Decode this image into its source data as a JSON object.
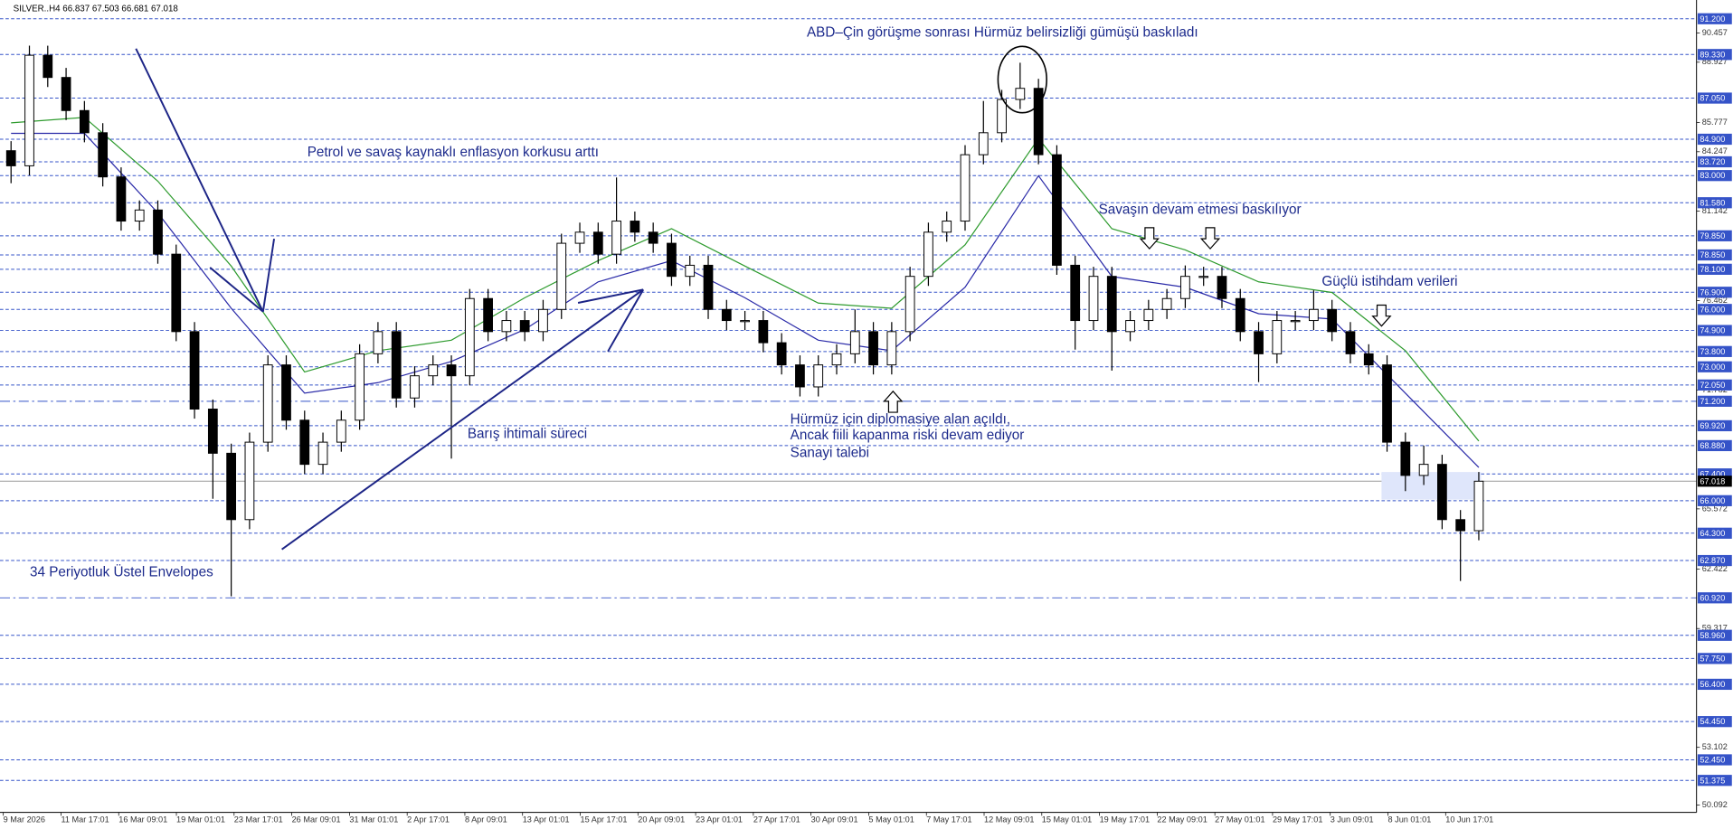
{
  "chart_data": {
    "type": "candlestick",
    "header": "SILVER..H4  66.837 67.503 66.681 67.018",
    "annotations": [
      "ABD–Çin görüşme sonrası Hürmüz belirsizliği gümüşü baskıladı",
      "Petrol ve savaş kaynaklı enflasyon korkusu arttı",
      "Savaşın devam etmesi baskılıyor",
      "Güçlü istihdam verileri",
      "Barış ihtimali süreci",
      "Hürmüz için diplomasiye alan açıldı,",
      "Ancak fiili kapanma riski devam ediyor",
      "Sanayi talebi",
      "34 Periyotluk Üstel Envelopes"
    ],
    "x_labels": [
      "9 Mar 2026",
      "11 Mar 17:01",
      "16 Mar 09:01",
      "19 Mar 01:01",
      "23 Mar 17:01",
      "26 Mar 09:01",
      "31 Mar 01:01",
      "2 Apr 17:01",
      "8 Apr 09:01",
      "13 Apr 01:01",
      "15 Apr 17:01",
      "20 Apr 09:01",
      "23 Apr 01:01",
      "27 Apr 17:01",
      "30 Apr 09:01",
      "5 May 01:01",
      "7 May 17:01",
      "12 May 09:01",
      "15 May 01:01",
      "19 May 17:01",
      "22 May 09:01",
      "27 May 01:01",
      "29 May 17:01",
      "3 Jun 09:01",
      "8 Jun 01:01",
      "10 Jun 17:01"
    ],
    "open": [
      84.3,
      83.51,
      89.29,
      88.13,
      86.4,
      85.24,
      82.93,
      80.62,
      81.2,
      78.89,
      74.84,
      70.79,
      68.48,
      65.01,
      69.06,
      73.1,
      70.21,
      67.9,
      69.06,
      70.21,
      73.68,
      74.84,
      71.37,
      72.53,
      73.1,
      72.53,
      76.57,
      74.84,
      75.42,
      74.84,
      76.0,
      79.46,
      80.04,
      78.89,
      80.62,
      80.04,
      79.46,
      77.73,
      78.31,
      76.0,
      75.42,
      75.42,
      74.26,
      73.1,
      71.95,
      73.1,
      73.68,
      74.84,
      73.1,
      74.84,
      77.73,
      80.04,
      80.62,
      84.09,
      85.24,
      86.98,
      87.56,
      84.09,
      78.31,
      75.42,
      77.73,
      74.84,
      75.42,
      76.0,
      76.57,
      77.73,
      77.73,
      76.57,
      74.84,
      73.68,
      75.42,
      75.42,
      76.0,
      74.84,
      73.68,
      73.1,
      69.06,
      67.32,
      67.9,
      65.01,
      64.43
    ],
    "high": [
      84.8,
      89.79,
      89.79,
      88.63,
      86.9,
      85.74,
      83.43,
      81.7,
      81.7,
      79.39,
      75.34,
      71.29,
      68.98,
      69.56,
      73.6,
      73.6,
      70.71,
      69.56,
      70.71,
      74.18,
      75.34,
      75.34,
      73.03,
      73.6,
      73.6,
      77.07,
      77.07,
      75.92,
      75.92,
      76.5,
      79.96,
      80.54,
      80.54,
      82.9,
      81.12,
      80.54,
      79.96,
      78.81,
      78.81,
      76.5,
      75.92,
      75.92,
      74.76,
      73.6,
      73.6,
      74.18,
      76.0,
      75.34,
      75.34,
      78.23,
      80.54,
      81.12,
      84.59,
      86.9,
      87.48,
      88.9,
      88.06,
      84.59,
      78.81,
      78.23,
      78.23,
      75.92,
      76.5,
      77.07,
      78.3,
      78.23,
      78.23,
      77.07,
      75.34,
      75.92,
      75.92,
      77.0,
      76.5,
      75.34,
      74.18,
      73.6,
      69.56,
      68.88,
      68.4,
      65.51,
      67.5
    ],
    "low": [
      82.6,
      83.01,
      87.63,
      85.9,
      84.74,
      82.43,
      80.12,
      80.12,
      78.39,
      74.34,
      70.29,
      66.1,
      61.0,
      64.51,
      68.56,
      69.71,
      67.4,
      67.4,
      68.56,
      69.71,
      73.18,
      70.87,
      70.87,
      72.03,
      68.2,
      72.03,
      74.34,
      74.34,
      74.34,
      74.34,
      75.5,
      78.96,
      78.39,
      78.39,
      79.54,
      78.96,
      77.23,
      77.23,
      75.5,
      74.92,
      74.92,
      73.76,
      72.6,
      71.45,
      71.45,
      72.6,
      73.18,
      72.6,
      72.6,
      74.34,
      77.23,
      79.54,
      80.12,
      83.59,
      84.74,
      86.48,
      83.59,
      77.81,
      73.9,
      74.92,
      72.8,
      74.34,
      74.92,
      75.5,
      76.07,
      77.23,
      76.07,
      74.34,
      72.2,
      73.18,
      74.92,
      74.92,
      74.34,
      73.18,
      72.6,
      68.56,
      66.5,
      66.82,
      64.51,
      61.8,
      63.93
    ],
    "close": [
      83.51,
      89.29,
      88.13,
      86.4,
      85.24,
      82.93,
      80.62,
      81.2,
      78.89,
      74.84,
      70.79,
      68.48,
      65.01,
      69.06,
      73.1,
      70.21,
      67.9,
      69.06,
      70.21,
      73.68,
      74.84,
      71.37,
      72.53,
      73.1,
      72.53,
      76.57,
      74.84,
      75.42,
      74.84,
      76.0,
      79.46,
      80.04,
      78.89,
      80.62,
      80.04,
      79.46,
      77.73,
      78.31,
      76.0,
      75.42,
      75.42,
      74.26,
      73.1,
      71.95,
      73.1,
      73.68,
      74.84,
      73.1,
      74.84,
      77.73,
      80.04,
      80.62,
      84.09,
      85.24,
      86.98,
      87.56,
      84.09,
      78.31,
      75.42,
      77.73,
      74.84,
      75.42,
      76.0,
      76.57,
      77.73,
      77.73,
      76.57,
      74.84,
      73.68,
      75.42,
      75.42,
      76.0,
      74.84,
      73.68,
      73.1,
      69.06,
      67.32,
      67.9,
      65.01,
      64.43,
      67.018
    ],
    "envelopes": [
      {
        "color": "#2e9b2e",
        "x": [
          0,
          4,
          8,
          12,
          16,
          20,
          24,
          28,
          32,
          36,
          40,
          44,
          48,
          52,
          56,
          60,
          64,
          68,
          72,
          76,
          80
        ],
        "values": [
          85.76,
          86.04,
          82.71,
          78.27,
          72.73,
          73.84,
          74.39,
          76.61,
          78.55,
          80.22,
          78.27,
          76.33,
          76.06,
          79.38,
          84.93,
          80.22,
          79.11,
          77.44,
          76.89,
          73.84,
          69.12
        ]
      },
      {
        "color": "#2a2aa8",
        "x": [
          0,
          4,
          8,
          12,
          16,
          20,
          24,
          28,
          32,
          36,
          40,
          44,
          48,
          52,
          56,
          60,
          64,
          68,
          72,
          76,
          80
        ],
        "values": [
          85.21,
          85.21,
          81.05,
          76.06,
          71.62,
          72.17,
          73.28,
          74.95,
          77.44,
          78.55,
          76.61,
          74.39,
          73.84,
          77.16,
          82.99,
          77.72,
          77.16,
          75.78,
          75.5,
          71.62,
          67.74
        ]
      }
    ],
    "ylim": [
      49.7,
      92.18
    ],
    "yticks": [
      90.457,
      88.927,
      85.777,
      84.247,
      81.142,
      76.462,
      71.782,
      65.572,
      62.422,
      59.317,
      53.102,
      50.092
    ],
    "levels": [
      {
        "value": 91.2,
        "label": "91.200"
      },
      {
        "value": 89.33,
        "label": "89.330"
      },
      {
        "value": 87.05,
        "label": "87.050"
      },
      {
        "value": 84.9,
        "label": "84.900"
      },
      {
        "value": 83.72,
        "label": "83.720"
      },
      {
        "value": 83,
        "label": "83.000"
      },
      {
        "value": 81.58,
        "label": "81.580"
      },
      {
        "value": 79.85,
        "label": "79.850"
      },
      {
        "value": 78.85,
        "label": "78.850"
      },
      {
        "value": 78.1,
        "label": "78.100"
      },
      {
        "value": 76.9,
        "label": "76.900"
      },
      {
        "value": 76,
        "label": "76.000"
      },
      {
        "value": 74.9,
        "label": "74.900"
      },
      {
        "value": 73.8,
        "label": "73.800"
      },
      {
        "value": 73,
        "label": "73.000"
      },
      {
        "value": 72.05,
        "label": "72.050"
      },
      {
        "value": 69.92,
        "label": "69.920"
      },
      {
        "value": 68.88,
        "label": "68.880"
      },
      {
        "value": 67.4,
        "label": "67.400"
      },
      {
        "value": 66,
        "label": "66.000"
      },
      {
        "value": 64.3,
        "label": "64.300"
      },
      {
        "value": 62.87,
        "label": "62.870"
      },
      {
        "value": 58.96,
        "label": "58.960"
      },
      {
        "value": 57.75,
        "label": "57.750"
      },
      {
        "value": 56.4,
        "label": "56.400"
      },
      {
        "value": 54.45,
        "label": "54.450"
      },
      {
        "value": 52.45,
        "label": "52.450"
      },
      {
        "value": 51.375,
        "label": "51.375"
      }
    ],
    "dashdot_levels": [
      {
        "value": 71.2,
        "label": "71.200"
      },
      {
        "value": 60.92,
        "label": "60.920"
      }
    ],
    "last_price": 67.018,
    "level_color": "#3553c8",
    "bull_color": "#ffffff",
    "bear_color": "#000000"
  }
}
